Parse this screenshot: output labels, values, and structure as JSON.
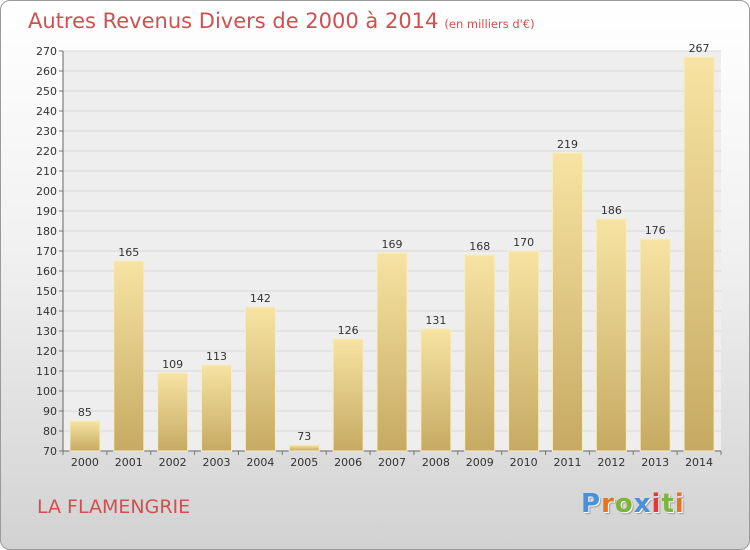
{
  "header": {
    "title": "Autres Revenus Divers de 2000 à 2014",
    "unit": "(en milliers d'€)"
  },
  "footer": {
    "location": "LA FLAMENGRIE",
    "logo_text": "Proxiti"
  },
  "colors": {
    "title": "#d0504f",
    "bar_light": "#f7e3a3",
    "bar_dark": "#c6aa62",
    "logo": [
      "#4a90d9",
      "#e8731d",
      "#7bb53c",
      "#4a90d9",
      "#e23a3a",
      "#7bb53c",
      "#e8731d"
    ]
  },
  "chart_data": {
    "type": "bar",
    "categories": [
      "2000",
      "2001",
      "2002",
      "2003",
      "2004",
      "2005",
      "2006",
      "2007",
      "2008",
      "2009",
      "2010",
      "2011",
      "2012",
      "2013",
      "2014"
    ],
    "values": [
      85,
      165,
      109,
      113,
      142,
      73,
      126,
      169,
      131,
      168,
      170,
      219,
      186,
      176,
      267
    ],
    "ylim": [
      70,
      270
    ],
    "yticks": [
      70,
      80,
      90,
      100,
      110,
      120,
      130,
      140,
      150,
      160,
      170,
      180,
      190,
      200,
      210,
      220,
      230,
      240,
      250,
      260,
      270
    ],
    "grid": true
  }
}
